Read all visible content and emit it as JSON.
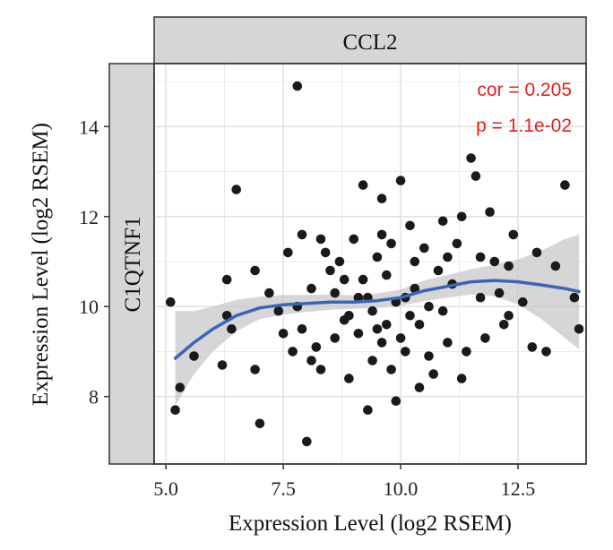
{
  "colors": {
    "points": "#1a1a1a",
    "smooth_line": "#3a66b8",
    "confidence_band": "#c8c8c8",
    "strip_fill": "#d6d6d6",
    "annotation": "#e02020",
    "grid": "#ebebeb"
  },
  "chart_data": {
    "type": "scatter",
    "facet_col_label": "CCL2",
    "facet_row_label": "C1QTNF1",
    "xlabel": "Expression Level (log2 RSEM)",
    "ylabel": "Expression Level (log2 RSEM)",
    "xlim": [
      4.75,
      13.95
    ],
    "ylim": [
      6.5,
      15.4
    ],
    "xticks": [
      5.0,
      7.5,
      10.0,
      12.5
    ],
    "xtick_labels": [
      "5.0",
      "7.5",
      "10.0",
      "12.5"
    ],
    "yticks": [
      8,
      10,
      12,
      14
    ],
    "ytick_labels": [
      "8",
      "10",
      "12",
      "14"
    ],
    "annotation": {
      "cor": "cor = 0.205",
      "p": "p = 1.1e-02"
    },
    "points": [
      [
        7.8,
        14.9
      ],
      [
        5.1,
        10.1
      ],
      [
        5.3,
        8.2
      ],
      [
        5.2,
        7.7
      ],
      [
        5.6,
        8.9
      ],
      [
        6.3,
        10.6
      ],
      [
        6.3,
        9.8
      ],
      [
        6.5,
        12.6
      ],
      [
        6.4,
        9.5
      ],
      [
        6.2,
        8.7
      ],
      [
        6.9,
        10.8
      ],
      [
        6.9,
        8.6
      ],
      [
        7.0,
        7.4
      ],
      [
        7.2,
        10.3
      ],
      [
        7.4,
        9.9
      ],
      [
        7.6,
        11.2
      ],
      [
        7.5,
        9.4
      ],
      [
        7.8,
        10.0
      ],
      [
        7.9,
        11.6
      ],
      [
        7.7,
        9.0
      ],
      [
        8.0,
        7.0
      ],
      [
        8.1,
        10.4
      ],
      [
        8.2,
        9.1
      ],
      [
        8.3,
        8.6
      ],
      [
        8.4,
        11.2
      ],
      [
        8.5,
        10.8
      ],
      [
        8.6,
        9.3
      ],
      [
        8.7,
        11.0
      ],
      [
        8.8,
        10.6
      ],
      [
        8.9,
        9.8
      ],
      [
        9.0,
        11.5
      ],
      [
        9.1,
        9.4
      ],
      [
        9.2,
        12.7
      ],
      [
        9.3,
        10.2
      ],
      [
        9.4,
        8.8
      ],
      [
        9.5,
        11.1
      ],
      [
        9.6,
        12.4
      ],
      [
        9.7,
        9.6
      ],
      [
        9.8,
        11.4
      ],
      [
        9.9,
        10.1
      ],
      [
        10.0,
        12.8
      ],
      [
        10.1,
        9.0
      ],
      [
        10.2,
        11.8
      ],
      [
        10.3,
        10.4
      ],
      [
        10.4,
        9.6
      ],
      [
        10.5,
        11.3
      ],
      [
        10.6,
        10.0
      ],
      [
        10.7,
        8.5
      ],
      [
        10.8,
        10.8
      ],
      [
        10.9,
        11.9
      ],
      [
        11.0,
        9.2
      ],
      [
        11.1,
        10.5
      ],
      [
        11.2,
        11.4
      ],
      [
        11.3,
        12.0
      ],
      [
        11.4,
        9.0
      ],
      [
        11.5,
        13.3
      ],
      [
        11.6,
        12.9
      ],
      [
        11.7,
        10.2
      ],
      [
        11.8,
        9.3
      ],
      [
        11.9,
        12.1
      ],
      [
        12.0,
        11.0
      ],
      [
        12.1,
        10.3
      ],
      [
        12.2,
        9.6
      ],
      [
        12.3,
        10.9
      ],
      [
        12.4,
        11.6
      ],
      [
        12.6,
        10.1
      ],
      [
        12.8,
        9.1
      ],
      [
        12.9,
        11.2
      ],
      [
        13.1,
        9.0
      ],
      [
        13.3,
        10.9
      ],
      [
        13.5,
        12.7
      ],
      [
        13.7,
        10.2
      ],
      [
        13.8,
        9.5
      ],
      [
        9.6,
        9.2
      ],
      [
        9.4,
        9.9
      ],
      [
        9.8,
        8.6
      ],
      [
        10.0,
        9.3
      ],
      [
        9.2,
        10.6
      ],
      [
        8.9,
        8.4
      ],
      [
        10.3,
        11.0
      ],
      [
        9.7,
        10.7
      ],
      [
        9.5,
        9.5
      ],
      [
        10.1,
        10.2
      ],
      [
        8.6,
        10.3
      ],
      [
        8.3,
        11.5
      ],
      [
        10.6,
        8.9
      ],
      [
        11.3,
        8.4
      ],
      [
        11.7,
        11.1
      ],
      [
        12.3,
        9.8
      ],
      [
        9.3,
        7.7
      ],
      [
        9.9,
        7.9
      ],
      [
        10.4,
        8.2
      ],
      [
        8.1,
        8.8
      ],
      [
        7.9,
        9.5
      ],
      [
        10.9,
        9.9
      ],
      [
        11.0,
        11.1
      ],
      [
        9.6,
        11.6
      ],
      [
        9.1,
        10.2
      ],
      [
        8.8,
        9.7
      ],
      [
        10.2,
        9.8
      ]
    ],
    "smooth": {
      "x": [
        5.2,
        5.6,
        6.0,
        6.5,
        7.0,
        7.5,
        8.0,
        8.5,
        9.0,
        9.5,
        10.0,
        10.5,
        11.0,
        11.5,
        12.0,
        12.5,
        13.0,
        13.5,
        13.8
      ],
      "y": [
        8.85,
        9.2,
        9.5,
        9.8,
        9.97,
        10.04,
        10.07,
        10.1,
        10.1,
        10.13,
        10.2,
        10.35,
        10.45,
        10.55,
        10.58,
        10.55,
        10.48,
        10.4,
        10.33
      ],
      "lower": [
        7.8,
        8.5,
        9.0,
        9.45,
        9.72,
        9.82,
        9.88,
        9.93,
        9.95,
        9.97,
        10.02,
        10.12,
        10.2,
        10.27,
        10.23,
        10.05,
        9.72,
        9.3,
        9.05
      ],
      "upper": [
        9.9,
        9.9,
        10.0,
        10.15,
        10.22,
        10.26,
        10.26,
        10.27,
        10.25,
        10.29,
        10.38,
        10.58,
        10.7,
        10.83,
        10.93,
        11.05,
        11.24,
        11.5,
        11.6
      ]
    }
  }
}
